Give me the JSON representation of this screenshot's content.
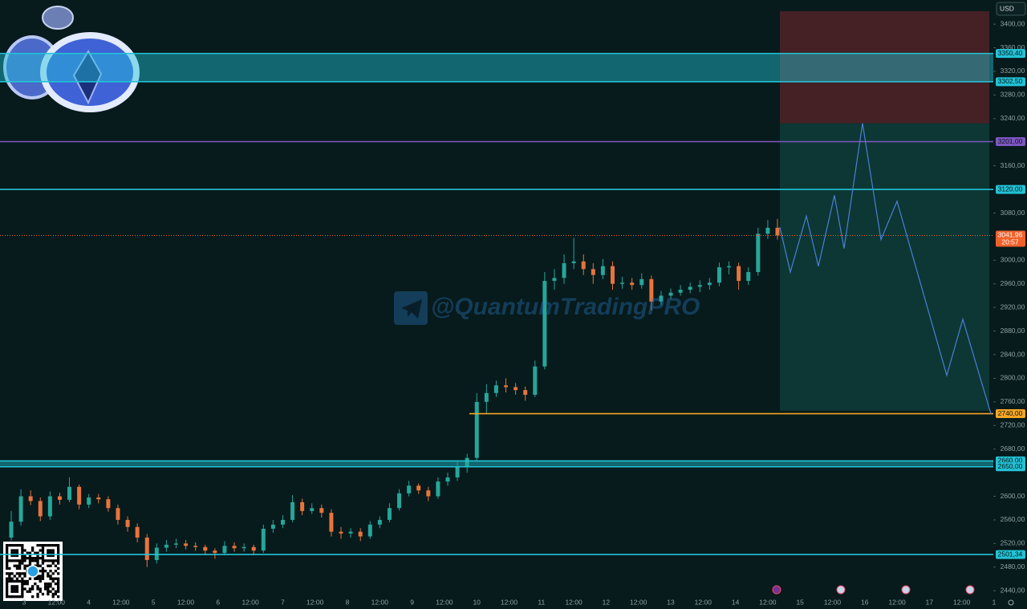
{
  "chart_data": {
    "type": "candlestick",
    "currency": "USD",
    "watermark": "@QuantumTradingPRO",
    "ylim": [
      2409,
      3441
    ],
    "yticks": [
      {
        "value": 3400,
        "label": "3400,00"
      },
      {
        "value": 3360,
        "label": "3360,00"
      },
      {
        "value": 3320,
        "label": "3320,00"
      },
      {
        "value": 3280,
        "label": "3280,00"
      },
      {
        "value": 3240,
        "label": "3240,00"
      },
      {
        "value": 3160,
        "label": "3160,00"
      },
      {
        "value": 3080,
        "label": "3080,00"
      },
      {
        "value": 3000,
        "label": "3000,00"
      },
      {
        "value": 2960,
        "label": "2960,00"
      },
      {
        "value": 2920,
        "label": "2920,00"
      },
      {
        "value": 2880,
        "label": "2880,00"
      },
      {
        "value": 2840,
        "label": "2840,00"
      },
      {
        "value": 2800,
        "label": "2800,00"
      },
      {
        "value": 2760,
        "label": "2760,00"
      },
      {
        "value": 2720,
        "label": "2720,00"
      },
      {
        "value": 2680,
        "label": "2680,00"
      },
      {
        "value": 2600,
        "label": "2600,00"
      },
      {
        "value": 2560,
        "label": "2560,00"
      },
      {
        "value": 2520,
        "label": "2520,00"
      },
      {
        "value": 2480,
        "label": "2480,00"
      },
      {
        "value": 2440,
        "label": "2440,00"
      }
    ],
    "categories": [
      "3",
      "12:00",
      "4",
      "12:00",
      "5",
      "12:00",
      "6",
      "12:00",
      "7",
      "12:00",
      "8",
      "12:00",
      "9",
      "12:00",
      "10",
      "12:00",
      "11",
      "12:00",
      "12",
      "12:00",
      "13",
      "12:00",
      "14",
      "12:00",
      "15",
      "12:00",
      "16",
      "12:00",
      "17",
      "12:00",
      "1"
    ],
    "up_color": "#26a69a",
    "down_color": "#e8743b",
    "candles": [
      [
        2530,
        2575,
        2525,
        2557
      ],
      [
        2557,
        2612,
        2550,
        2600
      ],
      [
        2600,
        2610,
        2585,
        2592
      ],
      [
        2592,
        2598,
        2558,
        2566
      ],
      [
        2566,
        2608,
        2560,
        2600
      ],
      [
        2600,
        2606,
        2586,
        2594
      ],
      [
        2594,
        2632,
        2590,
        2616
      ],
      [
        2616,
        2620,
        2578,
        2586
      ],
      [
        2586,
        2604,
        2580,
        2598
      ],
      [
        2598,
        2604,
        2588,
        2595
      ],
      [
        2595,
        2600,
        2574,
        2580
      ],
      [
        2580,
        2586,
        2552,
        2560
      ],
      [
        2560,
        2566,
        2540,
        2548
      ],
      [
        2548,
        2554,
        2522,
        2530
      ],
      [
        2530,
        2536,
        2480,
        2492
      ],
      [
        2492,
        2520,
        2486,
        2513
      ],
      [
        2513,
        2526,
        2506,
        2518
      ],
      [
        2518,
        2528,
        2512,
        2520
      ],
      [
        2520,
        2526,
        2510,
        2516
      ],
      [
        2516,
        2522,
        2508,
        2514
      ],
      [
        2514,
        2518,
        2500,
        2508
      ],
      [
        2508,
        2512,
        2494,
        2504
      ],
      [
        2504,
        2524,
        2500,
        2516
      ],
      [
        2516,
        2522,
        2506,
        2512
      ],
      [
        2512,
        2520,
        2506,
        2514
      ],
      [
        2514,
        2518,
        2500,
        2508
      ],
      [
        2508,
        2552,
        2504,
        2545
      ],
      [
        2545,
        2560,
        2538,
        2552
      ],
      [
        2552,
        2568,
        2546,
        2560
      ],
      [
        2560,
        2602,
        2556,
        2590
      ],
      [
        2590,
        2596,
        2568,
        2575
      ],
      [
        2575,
        2588,
        2570,
        2580
      ],
      [
        2580,
        2586,
        2564,
        2572
      ],
      [
        2572,
        2578,
        2532,
        2540
      ],
      [
        2540,
        2548,
        2528,
        2537
      ],
      [
        2537,
        2546,
        2530,
        2540
      ],
      [
        2540,
        2546,
        2524,
        2532
      ],
      [
        2532,
        2558,
        2528,
        2552
      ],
      [
        2552,
        2566,
        2546,
        2560
      ],
      [
        2560,
        2588,
        2556,
        2580
      ],
      [
        2580,
        2612,
        2576,
        2605
      ],
      [
        2605,
        2626,
        2600,
        2618
      ],
      [
        2618,
        2622,
        2604,
        2610
      ],
      [
        2610,
        2616,
        2592,
        2600
      ],
      [
        2600,
        2632,
        2596,
        2625
      ],
      [
        2625,
        2640,
        2618,
        2632
      ],
      [
        2632,
        2658,
        2626,
        2650
      ],
      [
        2650,
        2672,
        2640,
        2665
      ],
      [
        2665,
        2775,
        2660,
        2760
      ],
      [
        2760,
        2790,
        2740,
        2775
      ],
      [
        2775,
        2796,
        2768,
        2788
      ],
      [
        2788,
        2800,
        2776,
        2785
      ],
      [
        2785,
        2792,
        2772,
        2780
      ],
      [
        2780,
        2786,
        2762,
        2772
      ],
      [
        2772,
        2830,
        2768,
        2820
      ],
      [
        2820,
        2980,
        2815,
        2965
      ],
      [
        2965,
        2985,
        2950,
        2970
      ],
      [
        2970,
        3010,
        2960,
        2995
      ],
      [
        2995,
        3038,
        2985,
        2998
      ],
      [
        2998,
        3010,
        2975,
        2985
      ],
      [
        2985,
        2995,
        2960,
        2975
      ],
      [
        2975,
        3002,
        2968,
        2990
      ],
      [
        2990,
        2998,
        2950,
        2960
      ],
      [
        2960,
        2972,
        2952,
        2962
      ],
      [
        2962,
        2970,
        2950,
        2958
      ],
      [
        2958,
        2978,
        2952,
        2968
      ],
      [
        2968,
        2974,
        2915,
        2930
      ],
      [
        2930,
        2948,
        2924,
        2940
      ],
      [
        2940,
        2952,
        2934,
        2945
      ],
      [
        2945,
        2958,
        2940,
        2950
      ],
      [
        2950,
        2962,
        2944,
        2955
      ],
      [
        2955,
        2966,
        2946,
        2958
      ],
      [
        2958,
        2970,
        2950,
        2962
      ],
      [
        2962,
        2996,
        2956,
        2988
      ],
      [
        2988,
        2998,
        2976,
        2990
      ],
      [
        2990,
        2996,
        2950,
        2965
      ],
      [
        2965,
        2988,
        2958,
        2980
      ],
      [
        2980,
        3055,
        2974,
        3045
      ],
      [
        3045,
        3068,
        3036,
        3055
      ],
      [
        3055,
        3070,
        3035,
        3042
      ]
    ],
    "levels": [
      {
        "value": 3350.4,
        "label": "3350,40",
        "color": "#22c3d6"
      },
      {
        "value": 3302.5,
        "label": "3302,50",
        "color": "#22c3d6"
      },
      {
        "value": 3201,
        "label": "3201,00",
        "color": "#7e57c2"
      },
      {
        "value": 3120,
        "label": "3120,00",
        "color": "#22c3d6"
      },
      {
        "value": 2740,
        "label": "2740,00",
        "color": "#f5a623"
      },
      {
        "value": 2660,
        "label": "2660,00",
        "color": "#22c3d6"
      },
      {
        "value": 2650,
        "label": "2650,00",
        "color": "#22c3d6"
      },
      {
        "value": 2501.34,
        "label": "2501,34",
        "color": "#22c3d6"
      }
    ],
    "last_price": {
      "value": 3041.96,
      "label": "3041,96",
      "countdown": "20:57",
      "color": "#f0612a"
    },
    "projection": {
      "color": "#4a7fd8",
      "values": [
        3056,
        2980,
        3075,
        2990,
        3110,
        3020,
        3232,
        3035,
        3100,
        2805,
        2900,
        2740
      ]
    },
    "short_position": {
      "stop": 3422,
      "entry": 3232,
      "target": 2745
    }
  }
}
